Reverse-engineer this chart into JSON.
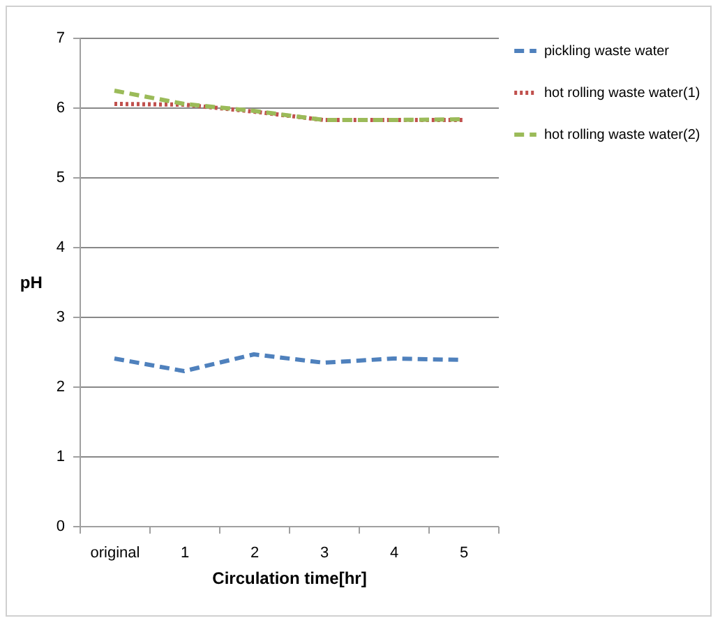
{
  "chart_data": {
    "type": "line",
    "xlabel": "Circulation time[hr]",
    "ylabel": "pH",
    "categories": [
      "original",
      "1",
      "2",
      "3",
      "4",
      "5"
    ],
    "ylim": [
      0,
      7
    ],
    "yticks": [
      0,
      1,
      2,
      3,
      4,
      5,
      6,
      7
    ],
    "grid": "y",
    "legend": "right",
    "marker": "none",
    "series": [
      {
        "name": "pickling waste water",
        "color": "#4f81bd",
        "line_style": "dashed",
        "values": [
          2.4,
          2.22,
          2.46,
          2.34,
          2.4,
          2.38
        ]
      },
      {
        "name": "hot rolling waste water(1)",
        "color": "#c0504d",
        "line_style": "dotted",
        "values": [
          6.05,
          6.04,
          5.94,
          5.82,
          5.82,
          5.82
        ]
      },
      {
        "name": "hot rolling waste water(2)",
        "color": "#9bbb59",
        "line_style": "dashed",
        "values": [
          6.24,
          6.05,
          5.95,
          5.82,
          5.82,
          5.83
        ]
      }
    ]
  }
}
